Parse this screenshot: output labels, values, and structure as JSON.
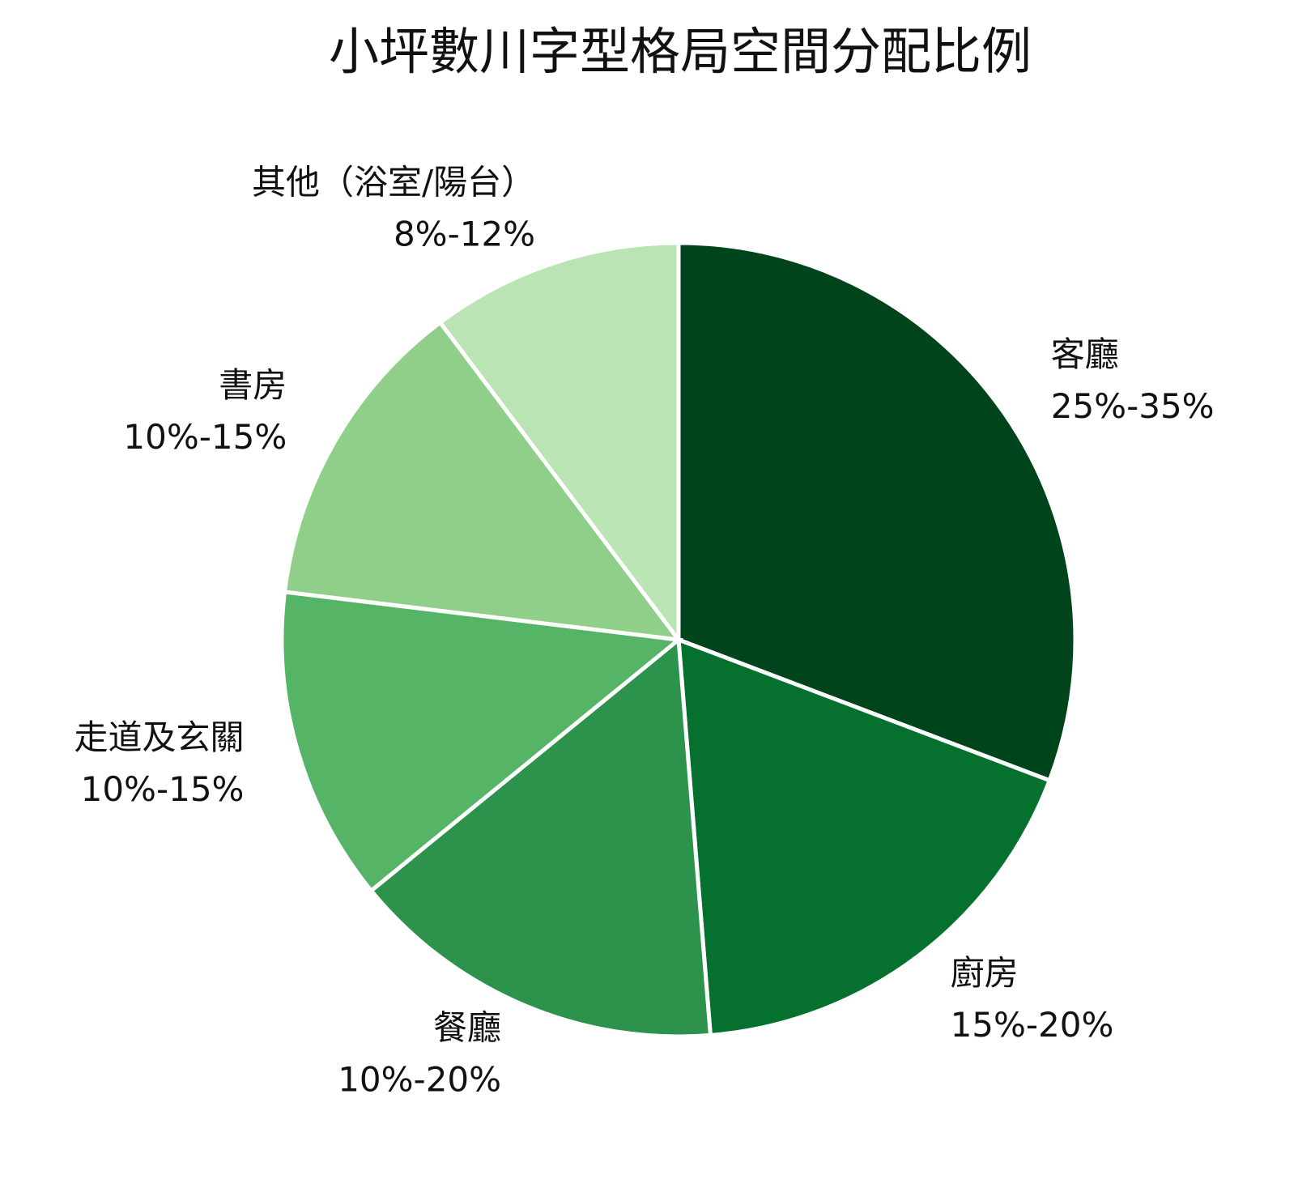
{
  "chart_data": {
    "type": "pie",
    "title": "小坪數川字型格局空間分配比例",
    "categories": [
      "客廳",
      "廚房",
      "餐廳",
      "走道及玄關",
      "書房",
      "其他（浴室/陽台）"
    ],
    "values": [
      30,
      17.5,
      15,
      12.5,
      12.5,
      10
    ],
    "value_labels": [
      "25%-35%",
      "15%-20%",
      "10%-20%",
      "10%-15%",
      "10%-15%",
      "8%-12%"
    ],
    "colors": [
      "#00441b",
      "#06712f",
      "#2d924b",
      "#56b466",
      "#8fcf89",
      "#bae4b3"
    ]
  }
}
